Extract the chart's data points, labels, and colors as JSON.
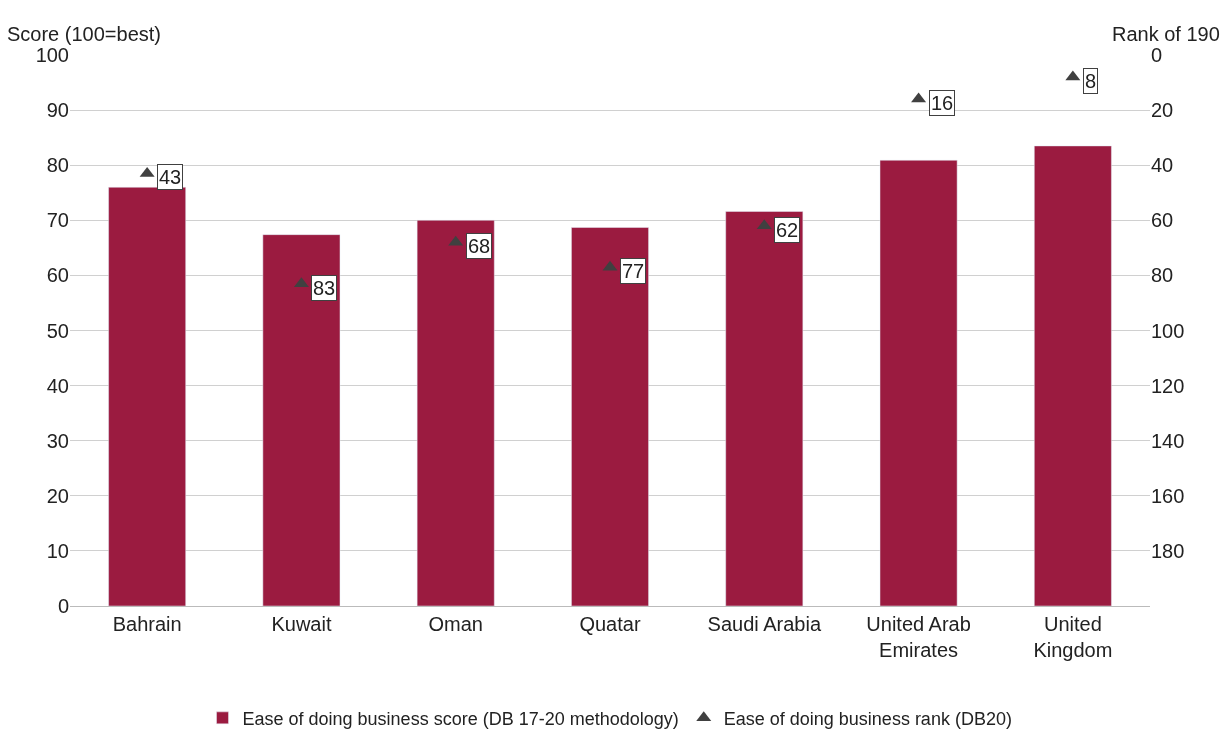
{
  "chart_data": {
    "type": "bar",
    "ylabel": "Score (100=best)",
    "y2label": "Rank of 190",
    "categories": [
      "Bahrain",
      "Kuwait",
      "Oman",
      "Quatar",
      "Saudi Arabia",
      "United Arab Emirates",
      "United Kingdom"
    ],
    "series": [
      {
        "name": "Ease of doing business score (DB 17-20 methodology)",
        "color": "#9b1b40",
        "values": [
          76.0,
          67.4,
          70.0,
          68.7,
          71.6,
          80.9,
          83.5
        ]
      },
      {
        "name": "Ease of doing business rank (DB20)",
        "type": "scatter",
        "axis": "y2",
        "marker": "triangle",
        "color": "#404040",
        "values": [
          43,
          83,
          68,
          77,
          62,
          16,
          8
        ],
        "value_labels": [
          "43",
          "83",
          "68",
          "77",
          "62",
          "16",
          "8"
        ]
      }
    ],
    "ylim": [
      0,
      100
    ],
    "yticks": [
      0,
      10,
      20,
      30,
      40,
      50,
      60,
      70,
      80,
      90,
      100
    ],
    "y2lim": [
      200,
      0
    ],
    "y2ticks": [
      0,
      20,
      40,
      60,
      80,
      100,
      120,
      140,
      160,
      180
    ],
    "grid": "y",
    "legend": "bottom"
  }
}
